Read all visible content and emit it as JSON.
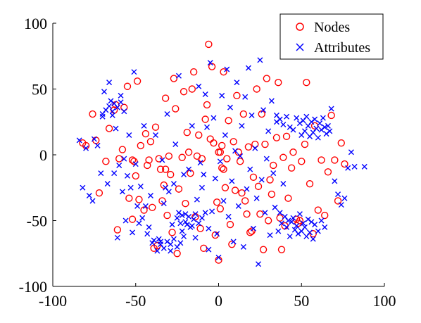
{
  "chart_data": {
    "type": "scatter",
    "xlim": [
      -100,
      100
    ],
    "ylim": [
      -100,
      100
    ],
    "x_ticks": [
      -100,
      -50,
      0,
      50,
      100
    ],
    "y_ticks": [
      -100,
      -50,
      0,
      50,
      100
    ],
    "x_tick_labels": [
      "-100",
      "-50",
      "0",
      "50",
      "100"
    ],
    "y_tick_labels": [
      "-100",
      "-50",
      "0",
      "50",
      "100"
    ],
    "grid": false,
    "legend_position": "top-right",
    "legend": [
      "Nodes",
      "Attributes"
    ],
    "series": [
      {
        "name": "Nodes",
        "marker": "circle",
        "color": "#ff0000",
        "points": [
          [
            -82,
            9
          ],
          [
            -80,
            7
          ],
          [
            -76,
            31
          ],
          [
            -74,
            11
          ],
          [
            -72,
            -29
          ],
          [
            -68,
            -5
          ],
          [
            -66,
            20
          ],
          [
            -63,
            34
          ],
          [
            -62,
            38
          ],
          [
            -61,
            -57
          ],
          [
            -60,
            -3
          ],
          [
            -58,
            4
          ],
          [
            -57,
            36
          ],
          [
            -55,
            52
          ],
          [
            -54,
            -33
          ],
          [
            -52,
            -4
          ],
          [
            -52,
            -49
          ],
          [
            -51,
            -5
          ],
          [
            -50,
            -16
          ],
          [
            -49,
            56
          ],
          [
            -48,
            -34
          ],
          [
            -47,
            7
          ],
          [
            -45,
            -42
          ],
          [
            -44,
            16
          ],
          [
            -43,
            -8
          ],
          [
            -42,
            -4
          ],
          [
            -41,
            10
          ],
          [
            -40,
            -40
          ],
          [
            -39,
            -71
          ],
          [
            -38,
            21
          ],
          [
            -37,
            -69
          ],
          [
            -36,
            -3
          ],
          [
            -35,
            -11
          ],
          [
            -34,
            -35
          ],
          [
            -33,
            -23
          ],
          [
            -32,
            -11
          ],
          [
            -32,
            43
          ],
          [
            -31,
            -46
          ],
          [
            -30,
            -1
          ],
          [
            -29,
            -15
          ],
          [
            -28,
            -59
          ],
          [
            -27,
            58
          ],
          [
            -26,
            35
          ],
          [
            -25,
            -75
          ],
          [
            -24,
            -26
          ],
          [
            -22,
            -2
          ],
          [
            -21,
            48
          ],
          [
            -20,
            -37
          ],
          [
            -19,
            17
          ],
          [
            -18,
            2
          ],
          [
            -17,
            -14
          ],
          [
            -16,
            50
          ],
          [
            -15,
            63
          ],
          [
            -14,
            -47
          ],
          [
            -13,
            -1
          ],
          [
            -12,
            15
          ],
          [
            -11,
            -56
          ],
          [
            -10,
            -3
          ],
          [
            -9,
            -71
          ],
          [
            -8,
            27
          ],
          [
            -7,
            38
          ],
          [
            -6,
            84
          ],
          [
            -5,
            12
          ],
          [
            -4,
            67
          ],
          [
            -3,
            9
          ],
          [
            -2,
            -61
          ],
          [
            -1,
            -36
          ],
          [
            0,
            -80
          ],
          [
            0,
            2
          ],
          [
            1,
            2
          ],
          [
            1,
            -41
          ],
          [
            2,
            7
          ],
          [
            2,
            -10
          ],
          [
            3,
            -11
          ],
          [
            3,
            63
          ],
          [
            4,
            -25
          ],
          [
            5,
            -3
          ],
          [
            6,
            26
          ],
          [
            7,
            -53
          ],
          [
            8,
            -68
          ],
          [
            9,
            10
          ],
          [
            10,
            -27
          ],
          [
            11,
            45
          ],
          [
            12,
            2
          ],
          [
            13,
            -5
          ],
          [
            14,
            -29
          ],
          [
            15,
            31
          ],
          [
            16,
            -35
          ],
          [
            17,
            -45
          ],
          [
            18,
            6
          ],
          [
            19,
            -59
          ],
          [
            20,
            -58
          ],
          [
            21,
            -17
          ],
          [
            22,
            8
          ],
          [
            23,
            50
          ],
          [
            24,
            -24
          ],
          [
            25,
            -45
          ],
          [
            26,
            31
          ],
          [
            27,
            -72
          ],
          [
            28,
            8
          ],
          [
            29,
            58
          ],
          [
            30,
            -50
          ],
          [
            31,
            -19
          ],
          [
            32,
            -30
          ],
          [
            33,
            -8
          ],
          [
            35,
            13
          ],
          [
            36,
            55
          ],
          [
            37,
            -48
          ],
          [
            38,
            -72
          ],
          [
            39,
            -2
          ],
          [
            40,
            -54
          ],
          [
            41,
            14
          ],
          [
            42,
            -33
          ],
          [
            44,
            -10
          ],
          [
            45,
            2
          ],
          [
            47,
            -49
          ],
          [
            48,
            -52
          ],
          [
            49,
            -50
          ],
          [
            50,
            -5
          ],
          [
            52,
            8
          ],
          [
            53,
            55
          ],
          [
            55,
            -22
          ],
          [
            57,
            -60
          ],
          [
            58,
            22
          ],
          [
            60,
            -42
          ],
          [
            62,
            -4
          ],
          [
            64,
            -46
          ],
          [
            66,
            -13
          ],
          [
            68,
            30
          ],
          [
            70,
            -4
          ],
          [
            72,
            -35
          ],
          [
            74,
            9
          ],
          [
            76,
            -7
          ]
        ]
      },
      {
        "name": "Attributes",
        "marker": "x",
        "color": "#0000ff",
        "points": [
          [
            -84,
            11
          ],
          [
            -82,
            -25
          ],
          [
            -80,
            5
          ],
          [
            -78,
            -31
          ],
          [
            -76,
            -35
          ],
          [
            -75,
            12
          ],
          [
            -73,
            7
          ],
          [
            -71,
            -14
          ],
          [
            -70,
            29
          ],
          [
            -69,
            48
          ],
          [
            -67,
            -22
          ],
          [
            -66,
            55
          ],
          [
            -65,
            41
          ],
          [
            -64,
            30
          ],
          [
            -63,
            -14
          ],
          [
            -62,
            20
          ],
          [
            -61,
            -63
          ],
          [
            -60,
            -8
          ],
          [
            -59,
            45
          ],
          [
            -58,
            -28
          ],
          [
            -57,
            -3
          ],
          [
            -56,
            -50
          ],
          [
            -55,
            -16
          ],
          [
            -54,
            15
          ],
          [
            -53,
            -25
          ],
          [
            -52,
            -59
          ],
          [
            -51,
            63
          ],
          [
            -50,
            -7
          ],
          [
            -49,
            -39
          ],
          [
            -48,
            -52
          ],
          [
            -47,
            -24
          ],
          [
            -46,
            -48
          ],
          [
            -45,
            22
          ],
          [
            -44,
            -39
          ],
          [
            -43,
            -60
          ],
          [
            -42,
            -55
          ],
          [
            -41,
            -31
          ],
          [
            -40,
            -67
          ],
          [
            -39,
            -65
          ],
          [
            -38,
            15
          ],
          [
            -37,
            -73
          ],
          [
            -36,
            -64
          ],
          [
            -35,
            -66
          ],
          [
            -34,
            -4
          ],
          [
            -33,
            -37
          ],
          [
            -32,
            -25
          ],
          [
            -31,
            31
          ],
          [
            -30,
            -28
          ],
          [
            -29,
            -68
          ],
          [
            -28,
            -53
          ],
          [
            -27,
            -22
          ],
          [
            -26,
            8
          ],
          [
            -25,
            -48
          ],
          [
            -24,
            60
          ],
          [
            -23,
            -52
          ],
          [
            -22,
            -46
          ],
          [
            -21,
            -15
          ],
          [
            -20,
            -51
          ],
          [
            -19,
            -53
          ],
          [
            -18,
            -11
          ],
          [
            -17,
            -55
          ],
          [
            -16,
            22
          ],
          [
            -15,
            -49
          ],
          [
            -14,
            -63
          ],
          [
            -13,
            -34
          ],
          [
            -12,
            52
          ],
          [
            -11,
            -6
          ],
          [
            -10,
            -25
          ],
          [
            -9,
            -15
          ],
          [
            -8,
            46
          ],
          [
            -7,
            21
          ],
          [
            -6,
            -72
          ],
          [
            -5,
            70
          ],
          [
            -4,
            -43
          ],
          [
            -3,
            28
          ],
          [
            -2,
            -18
          ],
          [
            -1,
            -60
          ],
          [
            0,
            -78
          ],
          [
            1,
            -5
          ],
          [
            2,
            45
          ],
          [
            3,
            -35
          ],
          [
            4,
            15
          ],
          [
            5,
            65
          ],
          [
            6,
            -47
          ],
          [
            7,
            36
          ],
          [
            8,
            -20
          ],
          [
            9,
            -66
          ],
          [
            10,
            3
          ],
          [
            11,
            55
          ],
          [
            12,
            -39
          ],
          [
            13,
            -1
          ],
          [
            14,
            22
          ],
          [
            15,
            -70
          ],
          [
            16,
            44
          ],
          [
            17,
            -26
          ],
          [
            18,
            66
          ],
          [
            19,
            -11
          ],
          [
            20,
            30
          ],
          [
            21,
            -56
          ],
          [
            22,
            5
          ],
          [
            23,
            -33
          ],
          [
            24,
            -83
          ],
          [
            25,
            72
          ],
          [
            26,
            -19
          ],
          [
            27,
            34
          ],
          [
            28,
            -44
          ],
          [
            29,
            -3
          ],
          [
            30,
            18
          ],
          [
            31,
            -61
          ],
          [
            32,
            41
          ],
          [
            33,
            -14
          ],
          [
            34,
            -40
          ],
          [
            35,
            25
          ],
          [
            36,
            -58
          ],
          [
            37,
            -44
          ],
          [
            38,
            -52
          ],
          [
            39,
            -22
          ],
          [
            40,
            -47
          ],
          [
            41,
            -55
          ],
          [
            42,
            -50
          ],
          [
            43,
            -62
          ],
          [
            44,
            -51
          ],
          [
            45,
            -48
          ],
          [
            46,
            -57
          ],
          [
            47,
            -54
          ],
          [
            48,
            -60
          ],
          [
            49,
            -45
          ],
          [
            50,
            -58
          ],
          [
            51,
            -52
          ],
          [
            52,
            -55
          ],
          [
            53,
            -62
          ],
          [
            54,
            -49
          ],
          [
            55,
            -59
          ],
          [
            56,
            -51
          ],
          [
            57,
            -64
          ],
          [
            35,
            30
          ],
          [
            37,
            27
          ],
          [
            39,
            23
          ],
          [
            41,
            29
          ],
          [
            43,
            21
          ],
          [
            45,
            19
          ],
          [
            47,
            28
          ],
          [
            49,
            24
          ],
          [
            50,
            15
          ],
          [
            51,
            26
          ],
          [
            52,
            18
          ],
          [
            53,
            29
          ],
          [
            54,
            22
          ],
          [
            55,
            14
          ],
          [
            56,
            25
          ],
          [
            57,
            17
          ],
          [
            58,
            27
          ],
          [
            59,
            20
          ],
          [
            60,
            13
          ],
          [
            61,
            24
          ],
          [
            62,
            19
          ],
          [
            63,
            28
          ],
          [
            64,
            21
          ],
          [
            65,
            16
          ],
          [
            66,
            22
          ],
          [
            67,
            18
          ],
          [
            68,
            35
          ],
          [
            70,
            -20
          ],
          [
            72,
            -30
          ],
          [
            74,
            -38
          ],
          [
            76,
            -33
          ],
          [
            78,
            -10
          ],
          [
            80,
            2
          ],
          [
            82,
            -9
          ],
          [
            88,
            -9
          ],
          [
            -70,
            31
          ],
          [
            -68,
            34
          ],
          [
            -66,
            37
          ],
          [
            -64,
            33
          ],
          [
            -63,
            39
          ],
          [
            -61,
            36
          ],
          [
            -59,
            40
          ],
          [
            -57,
            33
          ],
          [
            -35,
            -68
          ],
          [
            -33,
            -71
          ],
          [
            -31,
            -66
          ],
          [
            -29,
            -73
          ],
          [
            -27,
            -64
          ],
          [
            -25,
            -70
          ],
          [
            -23,
            -67
          ],
          [
            -21,
            -62
          ],
          [
            -18,
            -47
          ],
          [
            -16,
            -54
          ],
          [
            -14,
            -45
          ],
          [
            -12,
            -52
          ],
          [
            -10,
            -48
          ],
          [
            -8,
            -44
          ],
          [
            -6,
            -56
          ],
          [
            -20,
            -45
          ],
          [
            -22,
            -58
          ],
          [
            -24,
            -44
          ],
          [
            58,
            -53
          ],
          [
            60,
            -58
          ],
          [
            62,
            -50
          ],
          [
            64,
            -55
          ]
        ]
      }
    ]
  }
}
